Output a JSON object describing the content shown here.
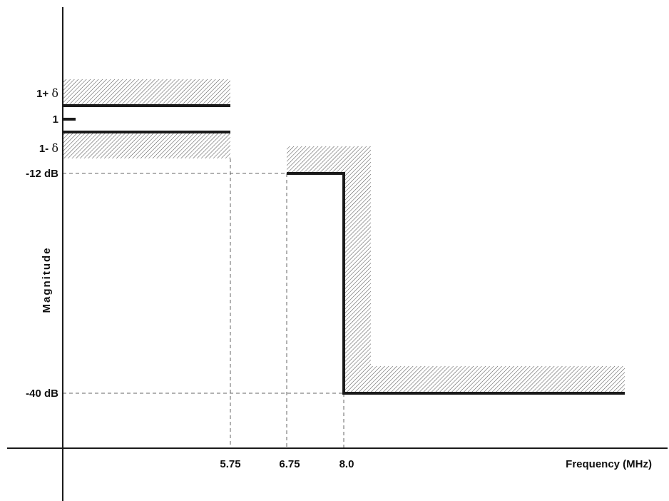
{
  "figure": {
    "y_axis_label": "Magnitude",
    "x_axis_label": "Frequency (MHz)",
    "y_ticks": {
      "upper_tol_prefix": "1+",
      "upper_tol_symbol": "δ",
      "nominal": "1",
      "lower_tol_prefix": "1-",
      "lower_tol_symbol": "δ",
      "transition_level": "-12 dB",
      "stopband_level": "-40 dB"
    },
    "x_ticks": {
      "passband_edge": "5.75",
      "transition_start": "6.75",
      "stopband_edge": "8.0"
    },
    "colors": {
      "line": "#1a1a1a",
      "hatch": "#555555",
      "dashed": "#666666"
    }
  }
}
